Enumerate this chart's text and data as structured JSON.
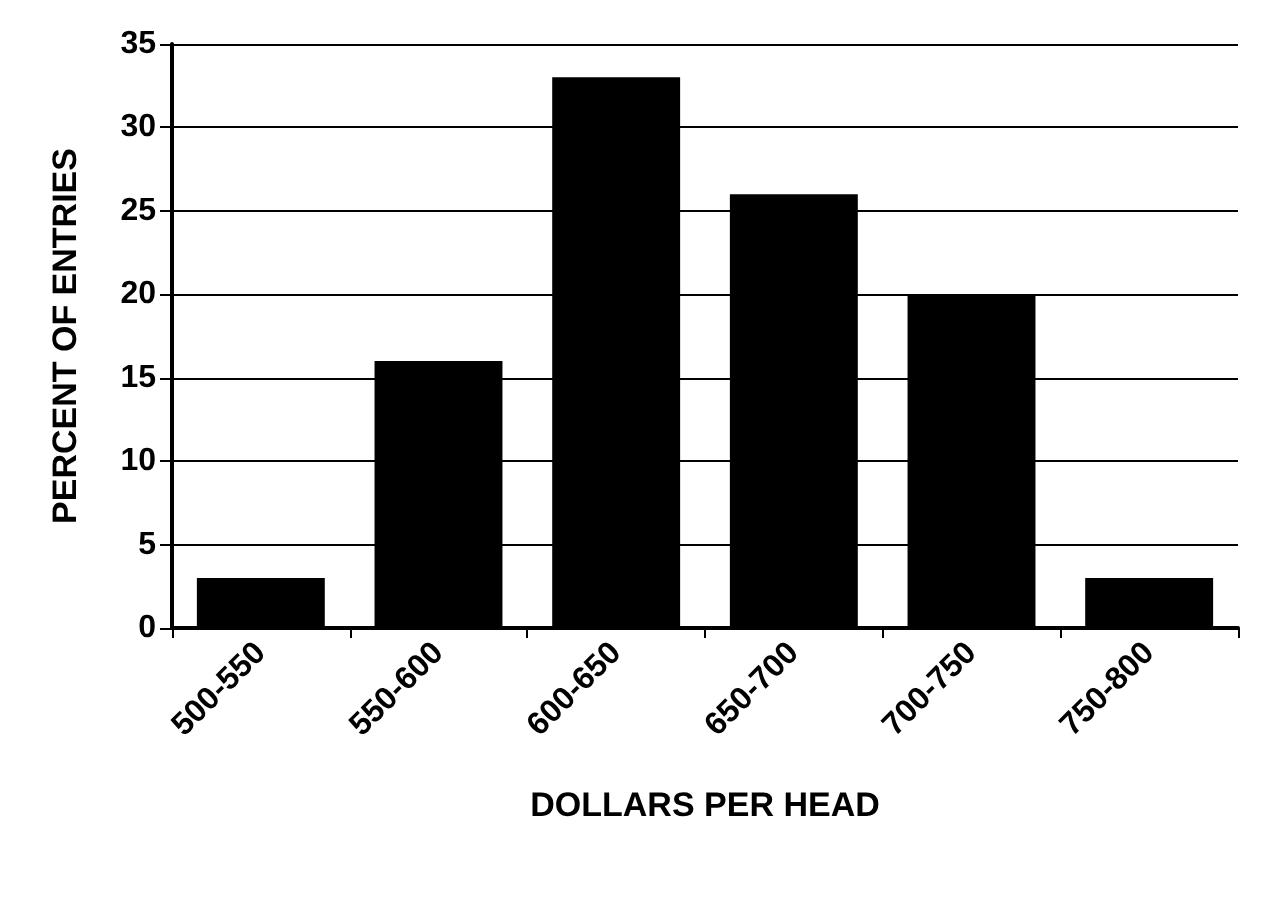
{
  "chart_data": {
    "type": "bar",
    "xlabel": "DOLLARS PER HEAD",
    "ylabel": "PERCENT OF ENTRIES",
    "categories": [
      "500-550",
      "550-600",
      "600-650",
      "650-700",
      "700-750",
      "750-800"
    ],
    "values": [
      3,
      16,
      33,
      26,
      20,
      3
    ],
    "color": "#000000",
    "ylim": [
      0,
      35
    ],
    "yticks": [
      0,
      5,
      10,
      15,
      20,
      25,
      30,
      35
    ],
    "grid": "y"
  }
}
